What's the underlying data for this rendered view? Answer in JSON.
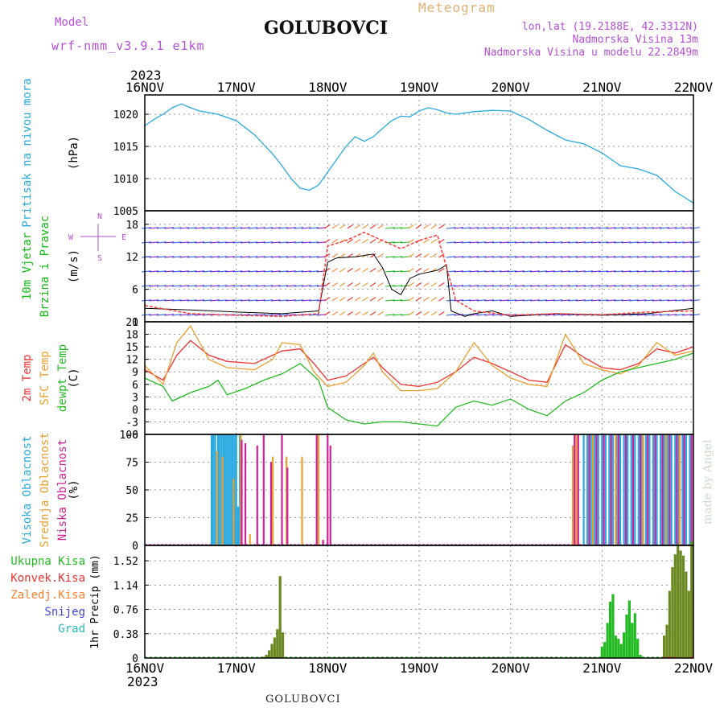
{
  "header": {
    "model_label": "Model",
    "model_name": "wrf-nmm_v3.9.1 e1km",
    "station": "GOLUBOVCI",
    "meteogram": "Meteogram",
    "lonlat": "lon,lat (19.2188E, 42.3312N)",
    "elevation": "Nadmorska Visina 13m",
    "model_elevation": "Nadmorska Visina u modelu 22.2849m",
    "year_top": "2023",
    "year_bottom": "2023",
    "footer_station": "GOLUBOVCI",
    "watermark": "made by Angel",
    "colors": {
      "model": "#b44fd6",
      "title": "#111111",
      "meteogram": "#e0b070",
      "info": "#b44fd6"
    }
  },
  "x_labels": [
    "16NOV",
    "17NOV",
    "18NOV",
    "19NOV",
    "20NOV",
    "21NOV",
    "22NOV"
  ],
  "chart_data": [
    {
      "type": "line",
      "panel": "pressure",
      "left_labels": [
        {
          "text": "Pritisak na nivou mora",
          "color": "#29a9df"
        },
        {
          "text": "(hPa)",
          "color": "#000000"
        }
      ],
      "yticks": [
        1005,
        1010,
        1015,
        1020
      ],
      "ylim": [
        1005,
        1023
      ],
      "series": [
        {
          "color": "#29a9df",
          "x": [
            0,
            0.1,
            0.2,
            0.3,
            0.4,
            0.5,
            0.6,
            0.8,
            1.0,
            1.2,
            1.4,
            1.5,
            1.6,
            1.7,
            1.8,
            1.9,
            2.0,
            2.1,
            2.2,
            2.3,
            2.4,
            2.5,
            2.6,
            2.7,
            2.8,
            2.9,
            3.0,
            3.1,
            3.2,
            3.3,
            3.4,
            3.6,
            3.8,
            4.0,
            4.2,
            4.4,
            4.6,
            4.8,
            5.0,
            5.2,
            5.4,
            5.6,
            5.8,
            6.0
          ],
          "y": [
            1018.2,
            1019.2,
            1020.0,
            1021.0,
            1021.6,
            1021.0,
            1020.5,
            1020.0,
            1019.0,
            1016.8,
            1013.8,
            1012.0,
            1010.0,
            1008.5,
            1008.2,
            1009.0,
            1011.0,
            1013.0,
            1015.0,
            1016.5,
            1015.8,
            1016.5,
            1017.8,
            1019.0,
            1019.7,
            1019.6,
            1020.5,
            1021.0,
            1020.7,
            1020.2,
            1020.0,
            1020.4,
            1020.6,
            1020.5,
            1019.2,
            1017.5,
            1016.0,
            1015.4,
            1014.0,
            1012.0,
            1011.5,
            1010.5,
            1008.0,
            1006.2
          ]
        }
      ]
    },
    {
      "type": "line",
      "panel": "wind",
      "left_labels": [
        {
          "text": "10m Vjetar",
          "color": "#11bb11"
        },
        {
          "text": "Brzina i Pravac",
          "color": "#11bb11"
        },
        {
          "text": "(m/s)",
          "color": "#000000"
        }
      ],
      "compass": {
        "n": "N",
        "w": "W",
        "e": "E",
        "s": "S",
        "color": "#b44fd6"
      },
      "yticks": [
        0,
        6,
        12,
        18
      ],
      "ylim": [
        0,
        20.5
      ],
      "series": [
        {
          "name": "",
          "color": "#000000",
          "x": [
            0,
            0.5,
            1.0,
            1.5,
            1.9,
            2.0,
            2.1,
            2.3,
            2.5,
            2.6,
            2.7,
            2.8,
            2.9,
            3.0,
            3.2,
            3.3,
            3.35,
            3.5,
            3.6,
            3.8,
            4.0,
            4.5,
            5.0,
            5.5,
            6.0
          ],
          "y": [
            2.5,
            2.2,
            1.8,
            1.5,
            2.0,
            11.0,
            11.8,
            12.0,
            12.5,
            10.0,
            6.0,
            5.0,
            8.0,
            8.8,
            9.5,
            10.5,
            2.0,
            1.0,
            1.5,
            2.0,
            1.0,
            1.5,
            1.2,
            1.5,
            2.5
          ]
        },
        {
          "name": "",
          "color": "#ff4444",
          "x": [
            0,
            0.5,
            1.0,
            1.5,
            1.9,
            2.0,
            2.2,
            2.4,
            2.6,
            2.8,
            3.0,
            3.2,
            3.4,
            3.6,
            4.0,
            4.5,
            5.0,
            5.5,
            6.0
          ],
          "y": [
            3.0,
            1.5,
            1.2,
            1.0,
            1.5,
            14.0,
            15.0,
            16.5,
            15.0,
            13.5,
            15.0,
            16.0,
            4.0,
            2.0,
            1.2,
            1.5,
            1.3,
            1.8,
            2.0
          ]
        }
      ],
      "barb_speeds": [
        5,
        5,
        5,
        5,
        5,
        5,
        4,
        4,
        4,
        4,
        4,
        4,
        3,
        3,
        3,
        3,
        3,
        3,
        3,
        3,
        3,
        3,
        3,
        3,
        12,
        13,
        14,
        15,
        16,
        16,
        15,
        14,
        8,
        7,
        10,
        12,
        14,
        15,
        16,
        12,
        4,
        3,
        3,
        3,
        3,
        3,
        3,
        3,
        3,
        3,
        3,
        3,
        3,
        3,
        3,
        3,
        3,
        3,
        3,
        3,
        3,
        3,
        3,
        3,
        3,
        3,
        3,
        3,
        3,
        3,
        3,
        3,
        4
      ]
    },
    {
      "type": "line",
      "panel": "temperature",
      "left_labels": [
        {
          "text": "2m Temp",
          "color": "#ee3333"
        },
        {
          "text": "SFC Temp",
          "color": "#e8a030"
        },
        {
          "text": "dewpt Temp",
          "color": "#22bb22"
        },
        {
          "text": "(C)",
          "color": "#000000"
        }
      ],
      "yticks": [
        -6,
        -3,
        0,
        3,
        6,
        9,
        12,
        15,
        18,
        21
      ],
      "ylim": [
        -6,
        21
      ],
      "series": [
        {
          "name": "2m Temp",
          "color": "#ee3333",
          "x": [
            0,
            0.2,
            0.35,
            0.5,
            0.7,
            0.9,
            1.2,
            1.5,
            1.7,
            1.85,
            2.0,
            2.2,
            2.4,
            2.5,
            2.6,
            2.8,
            3.0,
            3.2,
            3.4,
            3.6,
            3.8,
            4.0,
            4.2,
            4.4,
            4.6,
            4.8,
            5.0,
            5.2,
            5.4,
            5.6,
            5.8,
            6.0
          ],
          "y": [
            9.5,
            7.0,
            13.0,
            16.5,
            13.0,
            11.5,
            11.0,
            14.0,
            14.5,
            11.0,
            7.0,
            8.0,
            11.0,
            12.5,
            10.0,
            6.0,
            5.5,
            6.5,
            9.0,
            12.5,
            11.0,
            9.0,
            7.0,
            6.5,
            15.5,
            12.5,
            10.0,
            9.5,
            11.0,
            14.5,
            13.5,
            15.0
          ]
        },
        {
          "name": "SFC Temp",
          "color": "#e8a030",
          "x": [
            0,
            0.2,
            0.35,
            0.5,
            0.7,
            0.9,
            1.2,
            1.4,
            1.5,
            1.7,
            1.85,
            2.0,
            2.2,
            2.4,
            2.5,
            2.6,
            2.8,
            3.0,
            3.2,
            3.4,
            3.6,
            3.8,
            4.0,
            4.2,
            4.4,
            4.6,
            4.8,
            5.0,
            5.2,
            5.4,
            5.6,
            5.8,
            6.0
          ],
          "y": [
            10.5,
            6.0,
            16.0,
            20.0,
            12.0,
            10.0,
            9.5,
            12.0,
            16.0,
            15.5,
            9.0,
            5.5,
            6.5,
            10.5,
            13.5,
            9.0,
            4.5,
            4.5,
            5.0,
            9.0,
            16.0,
            10.5,
            7.5,
            6.0,
            5.5,
            18.0,
            11.0,
            9.5,
            8.5,
            10.5,
            16.0,
            13.0,
            14.0
          ]
        },
        {
          "name": "dewpt Temp",
          "color": "#22bb22",
          "x": [
            0,
            0.2,
            0.3,
            0.5,
            0.7,
            0.8,
            0.9,
            1.1,
            1.3,
            1.5,
            1.7,
            1.9,
            2.0,
            2.2,
            2.4,
            2.6,
            2.8,
            3.0,
            3.2,
            3.4,
            3.6,
            3.8,
            4.0,
            4.2,
            4.4,
            4.6,
            4.8,
            5.0,
            5.2,
            5.4,
            5.6,
            5.8,
            6.0
          ],
          "y": [
            7.5,
            5.5,
            2.0,
            4.0,
            5.5,
            7.0,
            3.5,
            5.0,
            7.0,
            8.5,
            11.0,
            7.0,
            0.5,
            -2.5,
            -3.5,
            -3.0,
            -3.0,
            -3.5,
            -4.0,
            0.5,
            2.0,
            1.0,
            2.5,
            0.0,
            -1.5,
            2.0,
            4.0,
            7.0,
            9.0,
            10.0,
            11.0,
            12.0,
            13.5
          ]
        }
      ]
    },
    {
      "type": "bar",
      "panel": "cloud",
      "left_labels": [
        {
          "text": "Visoka Oblacnost",
          "color": "#29a9df"
        },
        {
          "text": "Srednja Oblacnost",
          "color": "#e8a030"
        },
        {
          "text": "Niska Oblacnost",
          "color": "#cc2299"
        },
        {
          "text": "(%)",
          "color": "#000000"
        }
      ],
      "yticks": [
        0,
        25,
        50,
        75,
        100
      ],
      "ylim": [
        0,
        100
      ],
      "series": [
        {
          "name": "Visoka Oblacnost",
          "color": "#29a9df",
          "x": [
            0.73,
            0.75,
            0.77,
            0.8,
            0.82,
            0.84,
            0.86,
            0.88,
            0.9,
            0.92,
            0.94,
            0.96,
            0.98,
            1.0,
            1.02,
            1.04,
            4.8,
            4.84,
            4.88,
            4.92,
            4.96,
            5.0,
            5.04,
            5.08,
            5.12,
            5.16,
            5.2,
            5.24,
            5.28,
            5.32,
            5.36,
            5.4,
            5.44,
            5.48,
            5.52,
            5.56,
            5.6,
            5.64,
            5.68,
            5.72,
            5.76,
            5.8,
            5.84,
            5.88,
            5.92,
            5.96
          ],
          "values": [
            100,
            100,
            100,
            100,
            100,
            100,
            100,
            100,
            100,
            100,
            100,
            100,
            100,
            100,
            35,
            100,
            100,
            100,
            100,
            100,
            100,
            100,
            100,
            100,
            100,
            100,
            100,
            100,
            100,
            100,
            100,
            100,
            100,
            100,
            100,
            100,
            100,
            100,
            100,
            100,
            100,
            100,
            100,
            100,
            100,
            100
          ]
        },
        {
          "name": "Srednja Oblacnost",
          "color": "#e8a030",
          "x": [
            0.79,
            0.85,
            0.97,
            1.05,
            1.15,
            1.4,
            1.55,
            1.72,
            1.9,
            4.68,
            4.72,
            4.9,
            5.15,
            5.45,
            5.7,
            5.85
          ],
          "values": [
            85,
            80,
            60,
            100,
            10,
            80,
            80,
            80,
            100,
            90,
            100,
            100,
            100,
            100,
            100,
            100
          ]
        },
        {
          "name": "Niska Oblacnost",
          "color": "#cc2299",
          "x": [
            1.06,
            1.1,
            1.23,
            1.3,
            1.38,
            1.5,
            1.56,
            1.88,
            1.95,
            2.0,
            2.03,
            4.7,
            4.74,
            4.86,
            4.94,
            5.02,
            5.1,
            5.18,
            5.26,
            5.34,
            5.42,
            5.5,
            5.58,
            5.66,
            5.74,
            5.82,
            5.9,
            5.98
          ],
          "values": [
            95,
            92,
            90,
            100,
            75,
            100,
            70,
            100,
            5,
            100,
            90,
            100,
            100,
            100,
            100,
            100,
            100,
            100,
            100,
            100,
            100,
            100,
            100,
            100,
            100,
            100,
            100,
            100
          ]
        }
      ]
    },
    {
      "type": "bar",
      "panel": "precip",
      "left_labels": [
        {
          "text": "Ukupna Kisa",
          "color": "#22bb22"
        },
        {
          "text": "Konvek.Kisa",
          "color": "#ee3333"
        },
        {
          "text": "Zaledj.Kisa",
          "color": "#ff7f2a"
        },
        {
          "text": "Snijeg",
          "color": "#4444dd"
        },
        {
          "text": "Grad",
          "color": "#22bbbb"
        }
      ],
      "axis_label": "1hr Precip (mm)",
      "yticks": [
        0,
        0.38,
        0.76,
        1.14,
        1.52
      ],
      "ylim": [
        0,
        1.76
      ],
      "series": [
        {
          "name": "Ukupna Kisa",
          "color": "#22bb22",
          "x": [
            1.3,
            1.33,
            1.36,
            1.39,
            1.42,
            1.45,
            1.48,
            1.51,
            5.0,
            5.03,
            5.06,
            5.09,
            5.12,
            5.15,
            5.18,
            5.21,
            5.24,
            5.27,
            5.3,
            5.33,
            5.36,
            5.39,
            5.42,
            5.45,
            5.48,
            5.51,
            5.68,
            5.71,
            5.74,
            5.77,
            5.8,
            5.83,
            5.86,
            5.89,
            5.92,
            5.95,
            5.98
          ],
          "values": [
            0.02,
            0.05,
            0.12,
            0.22,
            0.32,
            0.45,
            1.28,
            0.4,
            0.18,
            0.25,
            0.55,
            0.88,
            1.0,
            0.35,
            0.3,
            0.22,
            0.4,
            0.68,
            0.9,
            0.55,
            0.7,
            0.3,
            0.05,
            0.02,
            0.0,
            0.0,
            0.35,
            0.52,
            1.05,
            1.42,
            1.62,
            1.78,
            1.68,
            1.6,
            1.35,
            1.05,
            1.82
          ]
        },
        {
          "name": "Konvek.Kisa",
          "color": "#ee3333",
          "x": [
            5.68,
            5.74,
            5.8,
            5.98
          ],
          "values": [
            0.02,
            0.02,
            0.02,
            0.02
          ]
        }
      ]
    }
  ]
}
